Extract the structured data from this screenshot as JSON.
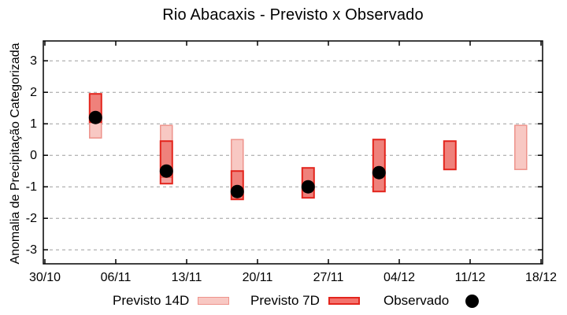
{
  "chart_data": {
    "type": "bar",
    "subtype": "range-bars-with-observed-points",
    "title": "Rio Abacaxis - Previsto x Observado",
    "xlabel": "",
    "ylabel": "Anomalia de Precipitação Categorizada",
    "x_tick_labels": [
      "30/10",
      "06/11",
      "13/11",
      "20/11",
      "27/11",
      "04/12",
      "11/12",
      "18/12"
    ],
    "y_tick_labels": [
      "-3",
      "-2",
      "-1",
      "0",
      "1",
      "2",
      "3"
    ],
    "y_ticks": [
      -3,
      -2,
      -1,
      0,
      1,
      2,
      3
    ],
    "ylim": [
      -3.45,
      3.63
    ],
    "x_days_total": 49,
    "x_tick_every_days": 7,
    "grid": "horizontal dashed",
    "legend_position": "bottom",
    "series": [
      {
        "name": "Previsto 14D",
        "style": "light-pink-range-bar"
      },
      {
        "name": "Previsto 7D",
        "style": "red-range-bar"
      },
      {
        "name": "Observado",
        "style": "black-dot"
      }
    ],
    "bars": [
      {
        "x_day": 5,
        "previsto_14d": [
          0.55,
          1.95
        ],
        "previsto_7d": [
          1.05,
          1.95
        ],
        "observado": 1.2
      },
      {
        "x_day": 12,
        "previsto_14d": [
          -0.7,
          0.95
        ],
        "previsto_7d": [
          -0.9,
          0.45
        ],
        "observado": -0.5
      },
      {
        "x_day": 19,
        "previsto_14d": [
          -1.4,
          0.5
        ],
        "previsto_7d": [
          -1.4,
          -0.5
        ],
        "observado": -1.15
      },
      {
        "x_day": 26,
        "previsto_14d": [
          -1.35,
          -0.4
        ],
        "previsto_7d": [
          -1.35,
          -0.4
        ],
        "observado": -1.0
      },
      {
        "x_day": 33,
        "previsto_14d": [
          -1.15,
          0.5
        ],
        "previsto_7d": [
          -1.15,
          0.5
        ],
        "observado": -0.55
      },
      {
        "x_day": 40,
        "previsto_14d": [
          -0.45,
          0.45
        ],
        "previsto_7d": [
          -0.45,
          0.45
        ],
        "observado": null
      },
      {
        "x_day": 47,
        "previsto_14d": [
          -0.45,
          0.95
        ],
        "previsto_7d": null,
        "observado": null
      }
    ]
  },
  "legend": {
    "items": [
      {
        "label": "Previsto 14D"
      },
      {
        "label": "Previsto 7D"
      },
      {
        "label": "Observado"
      }
    ]
  },
  "colors": {
    "light_fill": "#f8c8c3",
    "light_border": "#ee938b",
    "dark_fill_rgba": "rgba(227,30,23,0.42)",
    "dark_fill_solid": "#f4726c",
    "dark_border": "#e3251d",
    "observed": "#000000",
    "grid": "#9e9e9e",
    "axis": "#000000",
    "background": "#ffffff"
  }
}
